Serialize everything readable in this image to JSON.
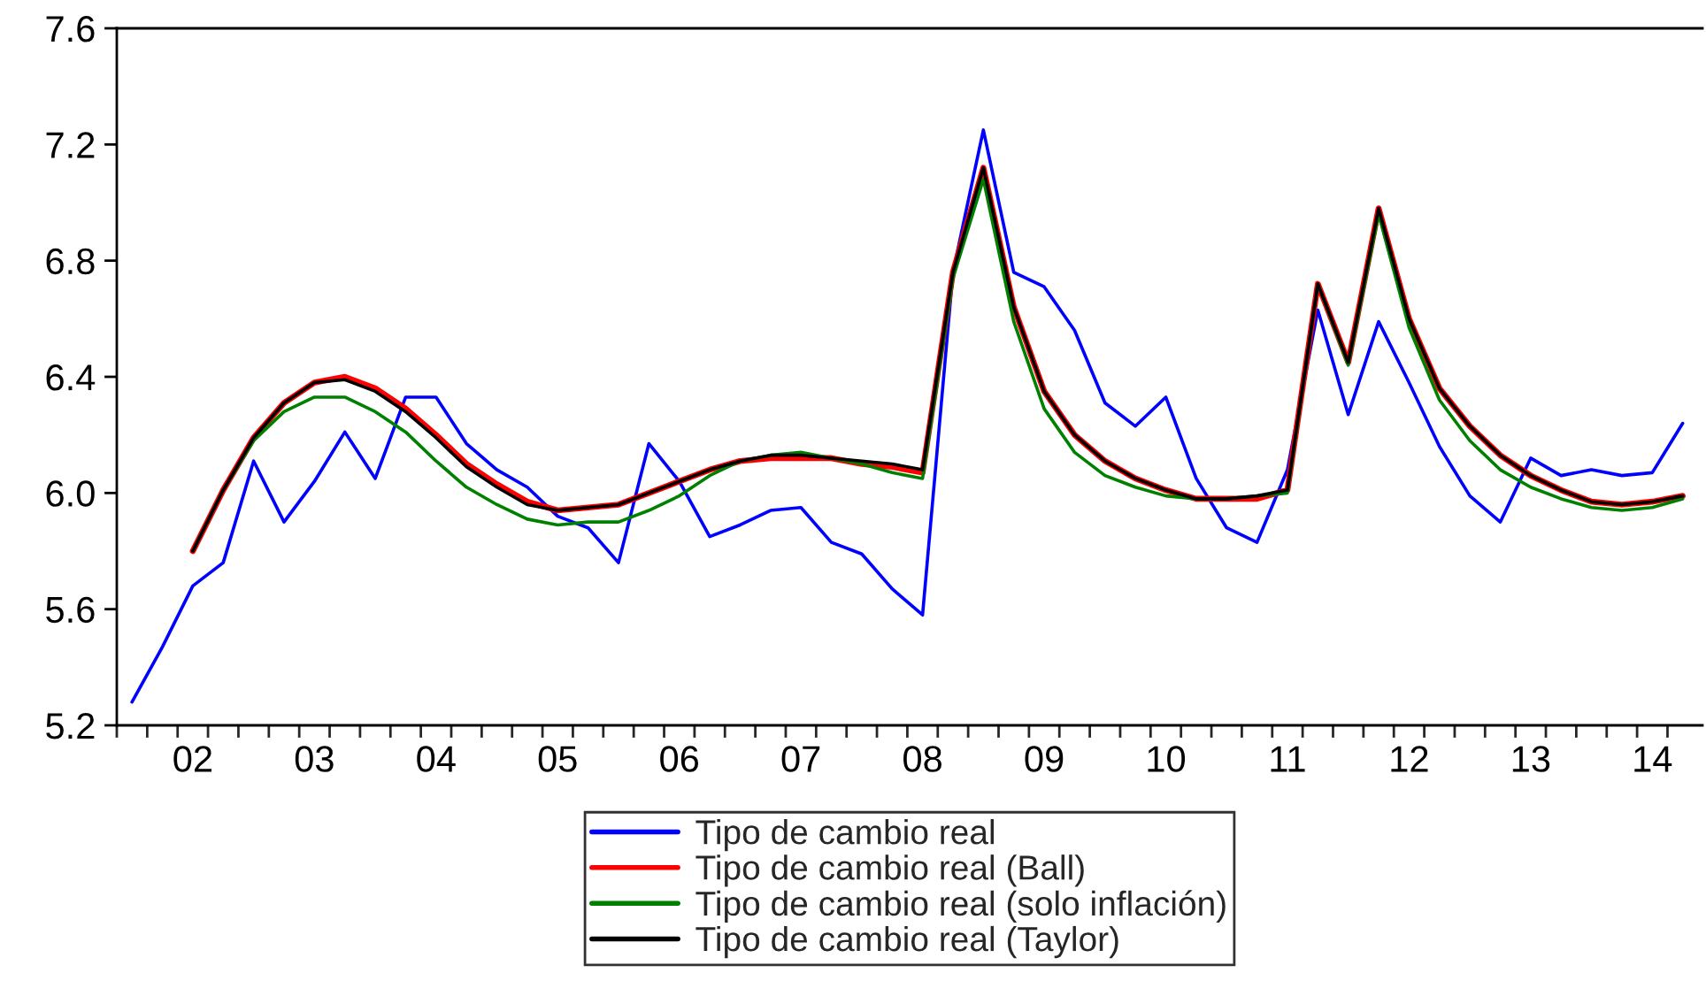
{
  "chart_data": {
    "type": "line",
    "categories": [
      null,
      null,
      "02",
      null,
      null,
      null,
      "03",
      null,
      null,
      null,
      "04",
      null,
      null,
      null,
      "05",
      null,
      null,
      null,
      "06",
      null,
      null,
      null,
      "07",
      null,
      null,
      null,
      "08",
      null,
      null,
      null,
      "09",
      null,
      null,
      null,
      "10",
      null,
      null,
      null,
      "11",
      null,
      null,
      null,
      "12",
      null,
      null,
      null,
      "13",
      null,
      null,
      null,
      "14",
      null
    ],
    "series": [
      {
        "name": "Tipo de cambio real",
        "color": "#0000ff",
        "values": [
          5.28,
          5.47,
          5.68,
          5.76,
          6.11,
          5.9,
          6.04,
          6.21,
          6.05,
          6.33,
          6.33,
          6.17,
          6.08,
          6.02,
          5.92,
          5.88,
          5.76,
          6.17,
          6.04,
          5.85,
          5.89,
          5.94,
          5.95,
          5.83,
          5.79,
          5.67,
          5.58,
          6.76,
          7.25,
          6.76,
          6.71,
          6.56,
          6.31,
          6.23,
          6.33,
          6.05,
          5.88,
          5.83,
          6.08,
          6.63,
          6.27,
          6.59,
          6.38,
          6.16,
          5.99,
          5.9,
          6.12,
          6.06,
          6.08,
          6.06,
          6.07,
          6.24
        ]
      },
      {
        "name": "Tipo de cambio real (Ball)",
        "color": "#ff0000",
        "values": [
          null,
          null,
          5.8,
          6.01,
          6.19,
          6.31,
          6.38,
          6.4,
          6.36,
          6.29,
          6.2,
          6.1,
          6.03,
          5.97,
          5.94,
          5.95,
          5.96,
          6.0,
          6.04,
          6.08,
          6.11,
          6.12,
          6.12,
          6.12,
          6.1,
          6.09,
          6.07,
          6.76,
          7.12,
          6.64,
          6.35,
          6.2,
          6.11,
          6.05,
          6.01,
          5.98,
          5.98,
          5.98,
          6.01,
          6.72,
          6.45,
          6.98,
          6.6,
          6.36,
          6.23,
          6.13,
          6.06,
          6.01,
          5.97,
          5.96,
          5.97,
          5.99
        ]
      },
      {
        "name": "Tipo de cambio real (solo inflación)",
        "color": "#008000",
        "values": [
          null,
          null,
          5.8,
          6.01,
          6.18,
          6.28,
          6.33,
          6.33,
          6.28,
          6.21,
          6.11,
          6.02,
          5.96,
          5.91,
          5.89,
          5.9,
          5.9,
          5.94,
          5.99,
          6.06,
          6.11,
          6.13,
          6.14,
          6.12,
          6.1,
          6.07,
          6.05,
          6.74,
          7.08,
          6.59,
          6.29,
          6.14,
          6.06,
          6.02,
          5.99,
          5.98,
          5.98,
          5.99,
          6.0,
          6.72,
          6.44,
          6.96,
          6.57,
          6.32,
          6.18,
          6.08,
          6.02,
          5.98,
          5.95,
          5.94,
          5.95,
          5.98
        ]
      },
      {
        "name": "Tipo de cambio real (Taylor)",
        "color": "#000000",
        "values": [
          null,
          null,
          5.8,
          6.01,
          6.19,
          6.31,
          6.38,
          6.39,
          6.35,
          6.28,
          6.19,
          6.09,
          6.02,
          5.96,
          5.94,
          5.95,
          5.96,
          6.0,
          6.04,
          6.08,
          6.11,
          6.13,
          6.13,
          6.12,
          6.11,
          6.1,
          6.08,
          6.76,
          7.12,
          6.64,
          6.35,
          6.2,
          6.11,
          6.05,
          6.01,
          5.98,
          5.98,
          5.99,
          6.01,
          6.72,
          6.45,
          6.98,
          6.6,
          6.36,
          6.23,
          6.13,
          6.06,
          6.01,
          5.97,
          5.96,
          5.97,
          5.99
        ]
      }
    ],
    "ylim": [
      5.2,
      7.6
    ],
    "yticks": [
      {
        "value": 5.2,
        "label": "5.2"
      },
      {
        "value": 5.6,
        "label": "5.6"
      },
      {
        "value": 6.0,
        "label": "6.0"
      },
      {
        "value": 6.4,
        "label": "6.4"
      },
      {
        "value": 6.8,
        "label": "6.8"
      },
      {
        "value": 7.2,
        "label": "7.2"
      },
      {
        "value": 7.6,
        "label": "7.6"
      }
    ],
    "legend": "bottom",
    "marker": "none",
    "line_style": "solid"
  }
}
